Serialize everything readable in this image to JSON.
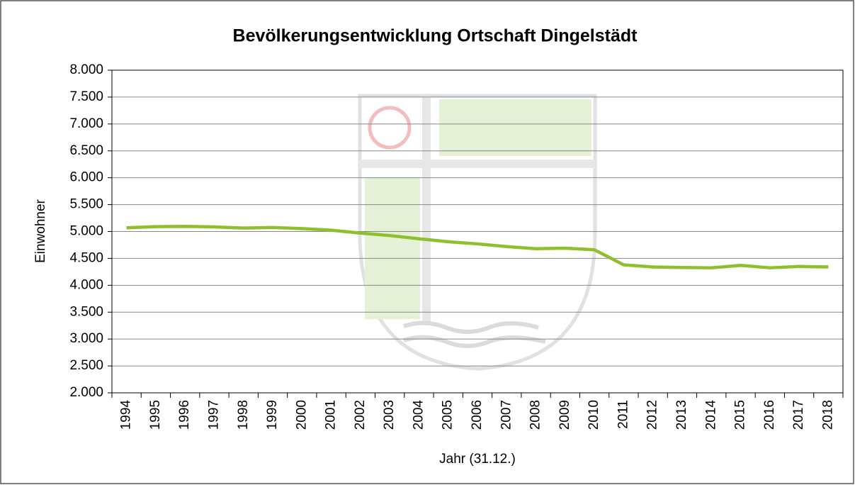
{
  "chart_data": {
    "type": "line",
    "title": "Bevölkerungsentwicklung Ortschaft Dingelstädt",
    "y_label": "Einwohner",
    "x_label": "Jahr (31.12.)",
    "categories": [
      "1994",
      "1995",
      "1996",
      "1997",
      "1998",
      "1999",
      "2000",
      "2001",
      "2002",
      "2003",
      "2004",
      "2005",
      "2006",
      "2007",
      "2008",
      "2009",
      "2010",
      "2011",
      "2012",
      "2013",
      "2014",
      "2015",
      "2016",
      "2017",
      "2018"
    ],
    "series": [
      {
        "name": "Einwohner",
        "color": "#8fbf2a",
        "values": [
          5070,
          5090,
          5095,
          5085,
          5065,
          5075,
          5055,
          5025,
          4970,
          4925,
          4865,
          4810,
          4770,
          4720,
          4680,
          4690,
          4660,
          4380,
          4340,
          4330,
          4325,
          4370,
          4325,
          4350,
          4340
        ]
      }
    ],
    "ylim": [
      2000,
      8000
    ],
    "yticks": [
      {
        "value": 2000,
        "label": "2.000"
      },
      {
        "value": 2500,
        "label": "2.500"
      },
      {
        "value": 3000,
        "label": "3.000"
      },
      {
        "value": 3500,
        "label": "3.500"
      },
      {
        "value": 4000,
        "label": "4.000"
      },
      {
        "value": 4500,
        "label": "4.500"
      },
      {
        "value": 5000,
        "label": "5.000"
      },
      {
        "value": 5500,
        "label": "5.500"
      },
      {
        "value": 6000,
        "label": "6.000"
      },
      {
        "value": 6500,
        "label": "6.500"
      },
      {
        "value": 7000,
        "label": "7.000"
      },
      {
        "value": 7500,
        "label": "7.500"
      },
      {
        "value": 8000,
        "label": "8.000"
      }
    ],
    "grid": true
  }
}
